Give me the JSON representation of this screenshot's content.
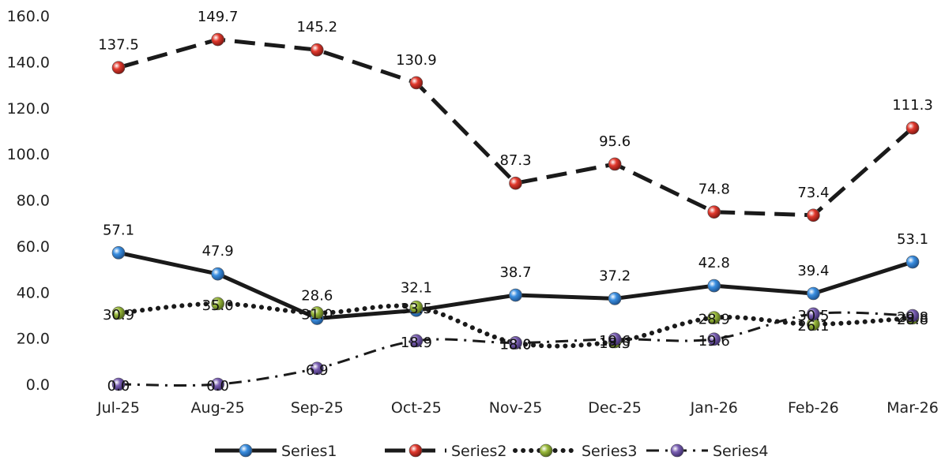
{
  "chart_data": {
    "type": "line",
    "categories": [
      "Jul-25",
      "Aug-25",
      "Sep-25",
      "Oct-25",
      "Nov-25",
      "Dec-25",
      "Jan-26",
      "Feb-26",
      "Mar-26"
    ],
    "ylim": [
      0,
      160
    ],
    "yticks": [
      "0.0",
      "20.0",
      "40.0",
      "60.0",
      "80.0",
      "100.0",
      "120.0",
      "140.0",
      "160.0"
    ],
    "grid": false,
    "legend_position": "bottom",
    "series": [
      {
        "name": "Series1",
        "values": [
          57.1,
          47.9,
          28.6,
          32.1,
          38.7,
          37.2,
          42.8,
          39.4,
          53.1
        ],
        "labels": [
          "57.1",
          "47.9",
          "28.6",
          "32.1",
          "38.7",
          "37.2",
          "42.8",
          "39.4",
          "53.1"
        ],
        "line_style": "solid",
        "marker_color": "#3a8ee0",
        "line_color": "#1a1a1a"
      },
      {
        "name": "Series2",
        "values": [
          137.5,
          149.7,
          145.2,
          130.9,
          87.3,
          95.6,
          74.8,
          73.4,
          111.3
        ],
        "labels": [
          "137.5",
          "149.7",
          "145.2",
          "130.9",
          "87.3",
          "95.6",
          "74.8",
          "73.4",
          "111.3"
        ],
        "line_style": "dashed",
        "marker_color": "#e23a2e",
        "line_color": "#1a1a1a"
      },
      {
        "name": "Series3",
        "values": [
          30.9,
          35.0,
          31.0,
          33.5,
          18.0,
          18.5,
          28.9,
          26.1,
          28.8
        ],
        "labels": [
          "30.9",
          "35.0",
          "31.0",
          "33.5",
          "18.0",
          "18.5",
          "28.9",
          "26.1",
          "28.8"
        ],
        "line_style": "dotted",
        "marker_color": "#9bbb3c",
        "line_color": "#1a1a1a"
      },
      {
        "name": "Series4",
        "values": [
          0.0,
          0.0,
          6.9,
          18.9,
          18.0,
          19.6,
          19.6,
          30.5,
          29.8
        ],
        "labels": [
          "0.0",
          "0.0",
          "6.9",
          "18.9",
          "18.0",
          "19.6",
          "19.6",
          "30.5",
          "29.8"
        ],
        "line_style": "dashdot",
        "marker_color": "#7a5fb3",
        "line_color": "#1a1a1a"
      }
    ]
  }
}
